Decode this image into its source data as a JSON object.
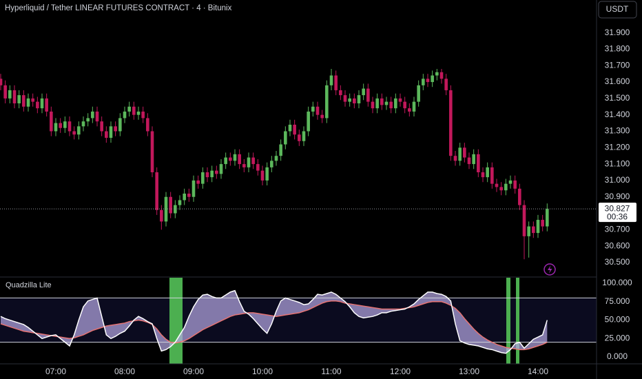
{
  "chart_data": [
    {
      "type": "candlestick",
      "title": "Hyperliquid / Tether LINEAR FUTURES CONTRACT · 4 · Bitunix",
      "currency": "USDT",
      "categories": [
        null,
        null,
        null,
        null,
        null,
        null,
        null,
        null,
        null,
        null,
        null,
        null,
        "07:00",
        null,
        null,
        null,
        null,
        null,
        null,
        null,
        null,
        null,
        null,
        null,
        null,
        null,
        null,
        "08:00",
        null,
        null,
        null,
        null,
        null,
        null,
        null,
        null,
        null,
        null,
        null,
        null,
        null,
        null,
        "09:00",
        null,
        null,
        null,
        null,
        null,
        null,
        null,
        null,
        null,
        null,
        null,
        null,
        null,
        null,
        "10:00",
        null,
        null,
        null,
        null,
        null,
        null,
        null,
        null,
        null,
        null,
        null,
        null,
        null,
        null,
        "11:00",
        null,
        null,
        null,
        null,
        null,
        null,
        null,
        null,
        null,
        null,
        null,
        null,
        null,
        null,
        "12:00",
        null,
        null,
        null,
        null,
        null,
        null,
        null,
        null,
        null,
        null,
        null,
        null,
        null,
        null,
        "13:00",
        null,
        null,
        null,
        null,
        null,
        null,
        null,
        null,
        null,
        null,
        null,
        null,
        null,
        null,
        "14:00",
        null,
        null
      ],
      "open": [
        31.62,
        31.58,
        31.5,
        31.55,
        31.47,
        31.52,
        31.45,
        31.5,
        31.48,
        31.44,
        31.5,
        31.42,
        31.3,
        31.35,
        31.32,
        31.36,
        31.3,
        31.28,
        31.33,
        31.36,
        31.38,
        31.42,
        31.36,
        31.3,
        31.26,
        31.33,
        31.3,
        31.38,
        31.42,
        31.45,
        31.4,
        31.42,
        31.38,
        31.3,
        31.05,
        30.82,
        30.75,
        30.9,
        30.8,
        30.85,
        30.88,
        30.92,
        30.9,
        31.0,
        30.98,
        31.05,
        31.02,
        31.06,
        31.04,
        31.1,
        31.14,
        31.12,
        31.16,
        31.1,
        31.08,
        31.14,
        31.1,
        31.06,
        31.0,
        31.08,
        31.12,
        31.15,
        31.22,
        31.3,
        31.34,
        31.28,
        31.24,
        31.3,
        31.42,
        31.45,
        31.4,
        31.38,
        31.58,
        31.64,
        31.55,
        31.52,
        31.48,
        31.5,
        31.47,
        31.52,
        31.56,
        31.48,
        31.44,
        31.5,
        31.46,
        31.48,
        31.44,
        31.5,
        31.48,
        31.44,
        31.42,
        31.48,
        31.58,
        31.62,
        31.6,
        31.64,
        31.66,
        31.62,
        31.55,
        31.15,
        31.12,
        31.2,
        31.14,
        31.1,
        31.16,
        31.05,
        31.02,
        31.08,
        30.98,
        30.96,
        30.94,
        30.98,
        31.0,
        30.95,
        30.85,
        30.66,
        30.72,
        30.68,
        30.76,
        30.72
      ],
      "high": [
        31.65,
        31.61,
        31.58,
        31.58,
        31.55,
        31.55,
        31.53,
        31.53,
        31.51,
        31.53,
        31.53,
        31.45,
        31.38,
        31.38,
        31.39,
        31.39,
        31.33,
        31.36,
        31.39,
        31.41,
        31.45,
        31.45,
        31.39,
        31.33,
        31.36,
        31.36,
        31.41,
        31.45,
        31.48,
        31.48,
        31.45,
        31.45,
        31.41,
        31.33,
        31.08,
        30.85,
        30.93,
        30.93,
        30.88,
        30.91,
        30.95,
        30.95,
        31.03,
        31.03,
        31.08,
        31.08,
        31.09,
        31.09,
        31.13,
        31.17,
        31.17,
        31.19,
        31.19,
        31.13,
        31.17,
        31.17,
        31.13,
        31.09,
        31.11,
        31.15,
        31.18,
        31.25,
        31.33,
        31.37,
        31.37,
        31.31,
        31.33,
        31.45,
        31.48,
        31.48,
        31.43,
        31.61,
        31.68,
        31.67,
        31.58,
        31.55,
        31.53,
        31.53,
        31.55,
        31.59,
        31.59,
        31.51,
        31.53,
        31.53,
        31.51,
        31.51,
        31.53,
        31.53,
        31.51,
        31.47,
        31.51,
        31.61,
        31.65,
        31.65,
        31.67,
        31.68,
        31.68,
        31.65,
        31.58,
        31.18,
        31.23,
        31.23,
        31.17,
        31.19,
        31.19,
        31.08,
        31.11,
        31.11,
        31.01,
        30.99,
        31.01,
        31.03,
        31.03,
        30.98,
        30.88,
        30.75,
        30.75,
        30.79,
        30.79,
        30.86
      ],
      "low": [
        31.55,
        31.47,
        31.47,
        31.44,
        31.44,
        31.42,
        31.42,
        31.45,
        31.41,
        31.41,
        31.39,
        31.27,
        31.27,
        31.29,
        31.29,
        31.27,
        31.25,
        31.25,
        31.3,
        31.33,
        31.35,
        31.33,
        31.27,
        31.23,
        31.23,
        31.27,
        31.27,
        31.35,
        31.39,
        31.37,
        31.37,
        31.35,
        31.27,
        31.02,
        30.79,
        30.7,
        30.72,
        30.77,
        30.77,
        30.82,
        30.85,
        30.87,
        30.87,
        30.95,
        30.95,
        30.99,
        30.99,
        31.01,
        31.01,
        31.07,
        31.09,
        31.09,
        31.07,
        31.05,
        31.05,
        31.07,
        31.03,
        30.97,
        30.97,
        31.05,
        31.09,
        31.12,
        31.19,
        31.27,
        31.25,
        31.21,
        31.21,
        31.27,
        31.39,
        31.37,
        31.35,
        31.35,
        31.55,
        31.52,
        31.49,
        31.45,
        31.45,
        31.44,
        31.44,
        31.49,
        31.45,
        31.41,
        31.41,
        31.43,
        31.43,
        31.41,
        31.41,
        31.45,
        31.41,
        31.39,
        31.39,
        31.45,
        31.55,
        31.57,
        31.57,
        31.61,
        31.59,
        31.52,
        31.12,
        31.09,
        31.09,
        31.11,
        31.07,
        31.07,
        31.02,
        30.99,
        30.99,
        30.95,
        30.93,
        30.91,
        30.91,
        30.95,
        30.92,
        30.82,
        30.52,
        30.53,
        30.65,
        30.65,
        30.69,
        30.69
      ],
      "close": [
        31.58,
        31.5,
        31.55,
        31.47,
        31.52,
        31.45,
        31.5,
        31.48,
        31.44,
        31.5,
        31.42,
        31.3,
        31.35,
        31.32,
        31.36,
        31.3,
        31.28,
        31.33,
        31.36,
        31.38,
        31.42,
        31.36,
        31.3,
        31.26,
        31.33,
        31.3,
        31.38,
        31.42,
        31.45,
        31.4,
        31.42,
        31.38,
        31.3,
        31.05,
        30.82,
        30.75,
        30.9,
        30.8,
        30.85,
        30.88,
        30.92,
        30.9,
        31.0,
        30.98,
        31.05,
        31.02,
        31.06,
        31.04,
        31.1,
        31.14,
        31.12,
        31.16,
        31.1,
        31.08,
        31.14,
        31.1,
        31.06,
        31.0,
        31.08,
        31.12,
        31.15,
        31.22,
        31.3,
        31.34,
        31.28,
        31.24,
        31.3,
        31.42,
        31.45,
        31.4,
        31.38,
        31.58,
        31.64,
        31.55,
        31.52,
        31.48,
        31.5,
        31.47,
        31.52,
        31.56,
        31.48,
        31.44,
        31.5,
        31.46,
        31.48,
        31.44,
        31.5,
        31.48,
        31.44,
        31.42,
        31.48,
        31.58,
        31.62,
        31.6,
        31.64,
        31.66,
        31.62,
        31.55,
        31.15,
        31.12,
        31.2,
        31.14,
        31.1,
        31.16,
        31.05,
        31.02,
        31.08,
        30.98,
        30.96,
        30.94,
        30.98,
        31.0,
        30.95,
        30.85,
        30.66,
        30.72,
        30.68,
        30.76,
        30.72,
        30.827
      ],
      "up_color": "#5cb85c",
      "down_color": "#c2185b",
      "ylim": [
        30.42,
        32.1
      ],
      "yticks": [
        {
          "value": 30.5,
          "label": "30.500"
        },
        {
          "value": 30.6,
          "label": "30.600"
        },
        {
          "value": 30.7,
          "label": "30.700"
        },
        {
          "value": 30.8,
          "label": "30.800"
        },
        {
          "value": 30.9,
          "label": "30.900"
        },
        {
          "value": 31.0,
          "label": "31.000"
        },
        {
          "value": 31.1,
          "label": "31.100"
        },
        {
          "value": 31.2,
          "label": "31.200"
        },
        {
          "value": 31.3,
          "label": "31.300"
        },
        {
          "value": 31.4,
          "label": "31.400"
        },
        {
          "value": 31.5,
          "label": "31.500"
        },
        {
          "value": 31.6,
          "label": "31.600"
        },
        {
          "value": 31.7,
          "label": "31.700"
        },
        {
          "value": 31.8,
          "label": "31.800"
        },
        {
          "value": 31.9,
          "label": "31.900"
        }
      ],
      "last_price": 30.827,
      "countdown": "00:36"
    },
    {
      "type": "line",
      "title": "Quadzilla Lite",
      "series": [
        {
          "color": "#ffffff",
          "values": [
            55,
            52,
            50,
            48,
            46,
            44,
            40,
            35,
            30,
            25,
            27,
            29,
            30,
            25,
            20,
            15,
            30,
            50,
            68,
            76,
            78,
            80,
            55,
            30,
            25,
            28,
            32,
            35,
            42,
            50,
            55,
            52,
            48,
            45,
            25,
            8,
            10,
            14,
            20,
            30,
            40,
            55,
            68,
            78,
            84,
            85,
            82,
            80,
            80,
            84,
            88,
            90,
            75,
            62,
            58,
            52,
            45,
            38,
            32,
            45,
            62,
            76,
            80,
            78,
            76,
            74,
            71,
            72,
            78,
            85,
            84,
            86,
            88,
            85,
            80,
            75,
            68,
            60,
            55,
            53,
            54,
            55,
            57,
            60,
            60,
            62,
            63,
            64,
            65,
            68,
            72,
            78,
            83,
            88,
            88,
            86,
            85,
            82,
            76,
            45,
            22,
            19,
            17,
            16,
            15,
            13,
            11,
            10,
            8,
            6,
            5,
            10,
            18,
            20,
            12,
            18,
            24,
            27,
            30,
            50
          ]
        },
        {
          "color": "#e57373",
          "values": [
            45,
            43,
            41,
            39,
            37,
            35,
            34,
            33,
            32,
            31,
            30,
            29,
            28,
            27,
            26,
            25,
            26,
            28,
            30,
            33,
            36,
            38,
            40,
            42,
            43,
            44,
            45,
            46,
            48,
            49,
            50,
            49,
            47,
            44,
            38,
            30,
            24,
            20,
            19,
            20,
            22,
            25,
            29,
            33,
            37,
            40,
            43,
            46,
            49,
            52,
            55,
            57,
            58,
            59,
            60,
            60,
            59,
            58,
            57,
            56,
            55,
            56,
            57,
            58,
            59,
            60,
            62,
            64,
            67,
            70,
            73,
            75,
            76,
            76,
            75,
            73,
            72,
            71,
            70,
            69,
            68,
            67,
            66,
            65,
            65,
            65,
            65,
            65,
            66,
            67,
            68,
            70,
            72,
            74,
            75,
            75,
            75,
            73,
            70,
            66,
            60,
            52,
            45,
            38,
            32,
            27,
            23,
            20,
            17,
            15,
            13,
            12,
            11,
            10,
            10,
            11,
            13,
            15,
            17,
            20
          ]
        }
      ],
      "levels": [
        80,
        20
      ],
      "ylim": [
        -9.3,
        107.5
      ],
      "yticks": [
        {
          "value": 0,
          "label": "0.000"
        },
        {
          "value": 25,
          "label": "25.000"
        },
        {
          "value": 50,
          "label": "50.000"
        },
        {
          "value": 75,
          "label": "75.000"
        },
        {
          "value": 100,
          "label": "100.000"
        }
      ]
    }
  ]
}
